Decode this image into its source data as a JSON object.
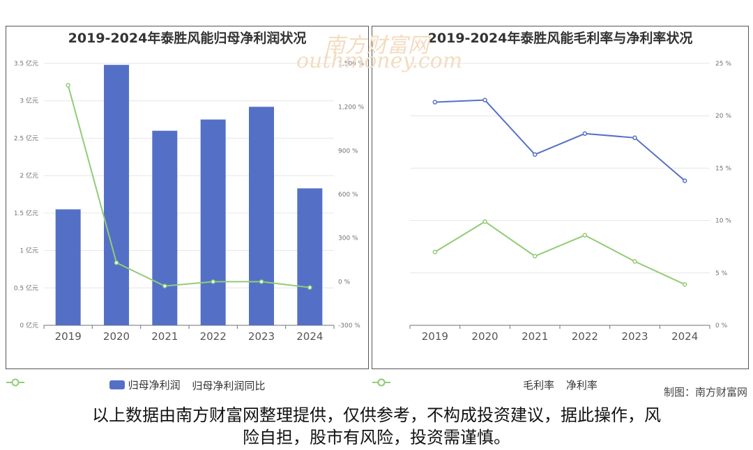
{
  "charts_title_left": "2019-2024年泰胜风能归母净利润状况",
  "charts_title_right": "2019-2024年泰胜风能毛利率与净利率状况",
  "credit": "制图：南方财富网",
  "disclaimer_line1": "以上数据由南方财富网整理提供，仅供参考，不构成投资建议，据此操作，风",
  "disclaimer_line2": "险自担，股市有风险，投资需谨慎。",
  "watermark_cn": "南方财富网",
  "watermark_en": "outhmoney.com",
  "chart_data": [
    {
      "type": "bar",
      "title": "2019-2024年泰胜风能归母净利润状况",
      "categories": [
        "2019",
        "2020",
        "2021",
        "2022",
        "2023",
        "2024"
      ],
      "series": [
        {
          "name": "归母净利润",
          "type": "bar",
          "axis": "left",
          "color": "#5470c6",
          "values": [
            1.55,
            3.48,
            2.6,
            2.75,
            2.92,
            1.83
          ]
        },
        {
          "name": "归母净利润同比",
          "type": "line",
          "axis": "right",
          "color": "#91cc75",
          "values": [
            1350,
            130,
            -30,
            0,
            0,
            -40
          ]
        }
      ],
      "y_left": {
        "min": 0,
        "max": 3.5,
        "ticks": [
          "0 亿元",
          "0.5 亿元",
          "1 亿元",
          "1.5 亿元",
          "2 亿元",
          "2.5 亿元",
          "3 亿元",
          "3.5 亿元"
        ],
        "tick_values": [
          0,
          0.5,
          1,
          1.5,
          2,
          2.5,
          3,
          3.5
        ]
      },
      "y_right": {
        "min": -300,
        "max": 1500,
        "ticks": [
          "-300 %",
          "0 %",
          "300 %",
          "600 %",
          "900 %",
          "1,200 %",
          "1,500 %"
        ],
        "tick_values": [
          -300,
          0,
          300,
          600,
          900,
          1200,
          1500
        ]
      },
      "grid": true,
      "legend": "bottom"
    },
    {
      "type": "line",
      "title": "2019-2024年泰胜风能毛利率与净利率状况",
      "categories": [
        "2019",
        "2020",
        "2021",
        "2022",
        "2023",
        "2024"
      ],
      "series": [
        {
          "name": "毛利率",
          "color": "#5470c6",
          "values": [
            21.3,
            21.5,
            16.3,
            18.3,
            17.9,
            13.8
          ]
        },
        {
          "name": "净利率",
          "color": "#91cc75",
          "values": [
            7.0,
            9.9,
            6.6,
            8.6,
            6.1,
            3.9
          ]
        }
      ],
      "y_right": {
        "min": 0,
        "max": 25,
        "ticks": [
          "0 %",
          "5 %",
          "10 %",
          "15 %",
          "20 %",
          "25 %"
        ],
        "tick_values": [
          0,
          5,
          10,
          15,
          20,
          25
        ]
      },
      "grid": true,
      "legend": "bottom"
    }
  ]
}
